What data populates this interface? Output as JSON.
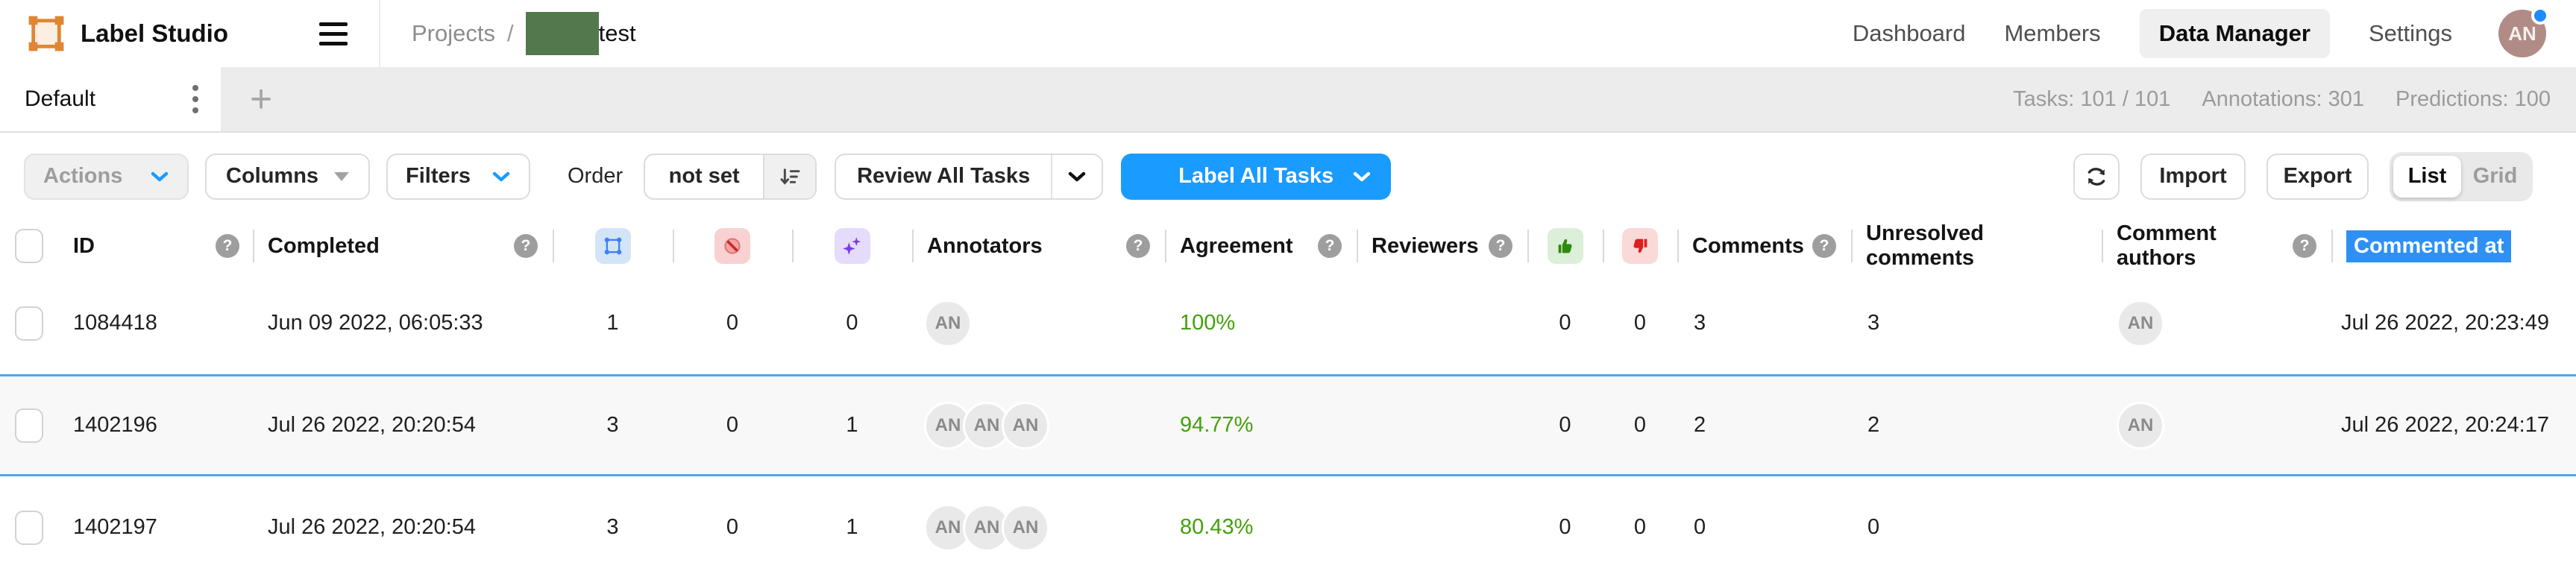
{
  "nav": {
    "brand": "Label Studio",
    "breadcrumb": {
      "root": "Projects",
      "separator": "/",
      "project": "test"
    },
    "links": [
      {
        "label": "Dashboard"
      },
      {
        "label": "Members"
      },
      {
        "label": "Data Manager"
      },
      {
        "label": "Settings"
      }
    ],
    "avatar_initials": "AN"
  },
  "tabbar": {
    "active_tab": "Default",
    "add_tab_label": "+",
    "stats": {
      "tasks": "Tasks: 101 / 101",
      "annotations": "Annotations: 301",
      "predictions": "Predictions: 100"
    }
  },
  "toolbar": {
    "actions_label": "Actions",
    "columns_label": "Columns",
    "filters_label": "Filters",
    "order_label": "Order",
    "order_value": "not set",
    "review_label": "Review All Tasks",
    "label_all_label": "Label All Tasks",
    "import_label": "Import",
    "export_label": "Export",
    "list_label": "List",
    "grid_label": "Grid"
  },
  "table": {
    "headers": {
      "id": "ID",
      "completed": "Completed",
      "annotations_icon": "annotation-results-icon",
      "cancelled_icon": "skipped-annotations-icon",
      "predictions_icon": "predictions-icon",
      "annotators": "Annotators",
      "agreement": "Agreement",
      "reviewers": "Reviewers",
      "accepted_icon": "thumbs-up-icon",
      "rejected_icon": "thumbs-down-icon",
      "comments": "Comments",
      "unresolved_comments": "Unresolved comments",
      "comment_authors": "Comment authors",
      "commented_at": "Commented at"
    },
    "rows": [
      {
        "id": "1084418",
        "completed": "Jun 09 2022, 06:05:33",
        "annotations": "1",
        "cancelled": "0",
        "predictions": "0",
        "annotators": [
          "AN"
        ],
        "agreement": "100%",
        "reviewers": "",
        "reviews_accepted": "0",
        "reviews_rejected": "0",
        "comments": "3",
        "unresolved_comments": "3",
        "comment_authors": [
          "AN"
        ],
        "commented_at": "Jul 26 2022, 20:23:49",
        "highlighted": false
      },
      {
        "id": "1402196",
        "completed": "Jul 26 2022, 20:20:54",
        "annotations": "3",
        "cancelled": "0",
        "predictions": "1",
        "annotators": [
          "AN",
          "AN",
          "AN"
        ],
        "agreement": "94.77%",
        "reviewers": "",
        "reviews_accepted": "0",
        "reviews_rejected": "0",
        "comments": "2",
        "unresolved_comments": "2",
        "comment_authors": [
          "AN"
        ],
        "commented_at": "Jul 26 2022, 20:24:17",
        "highlighted": true
      },
      {
        "id": "1402197",
        "completed": "Jul 26 2022, 20:20:54",
        "annotations": "3",
        "cancelled": "0",
        "predictions": "1",
        "annotators": [
          "AN",
          "AN",
          "AN"
        ],
        "agreement": "80.43%",
        "reviewers": "",
        "reviews_accepted": "0",
        "reviews_rejected": "0",
        "comments": "0",
        "unresolved_comments": "0",
        "comment_authors": [],
        "commented_at": "",
        "highlighted": false
      }
    ]
  },
  "colors": {
    "primary_blue": "#199bff",
    "agreement_green": "#44a00a",
    "selected_row_border": "#4aa8f4",
    "selection_bg": "#2e90f5",
    "brand_orange": "#e08633",
    "redaction_green": "#53784e"
  }
}
